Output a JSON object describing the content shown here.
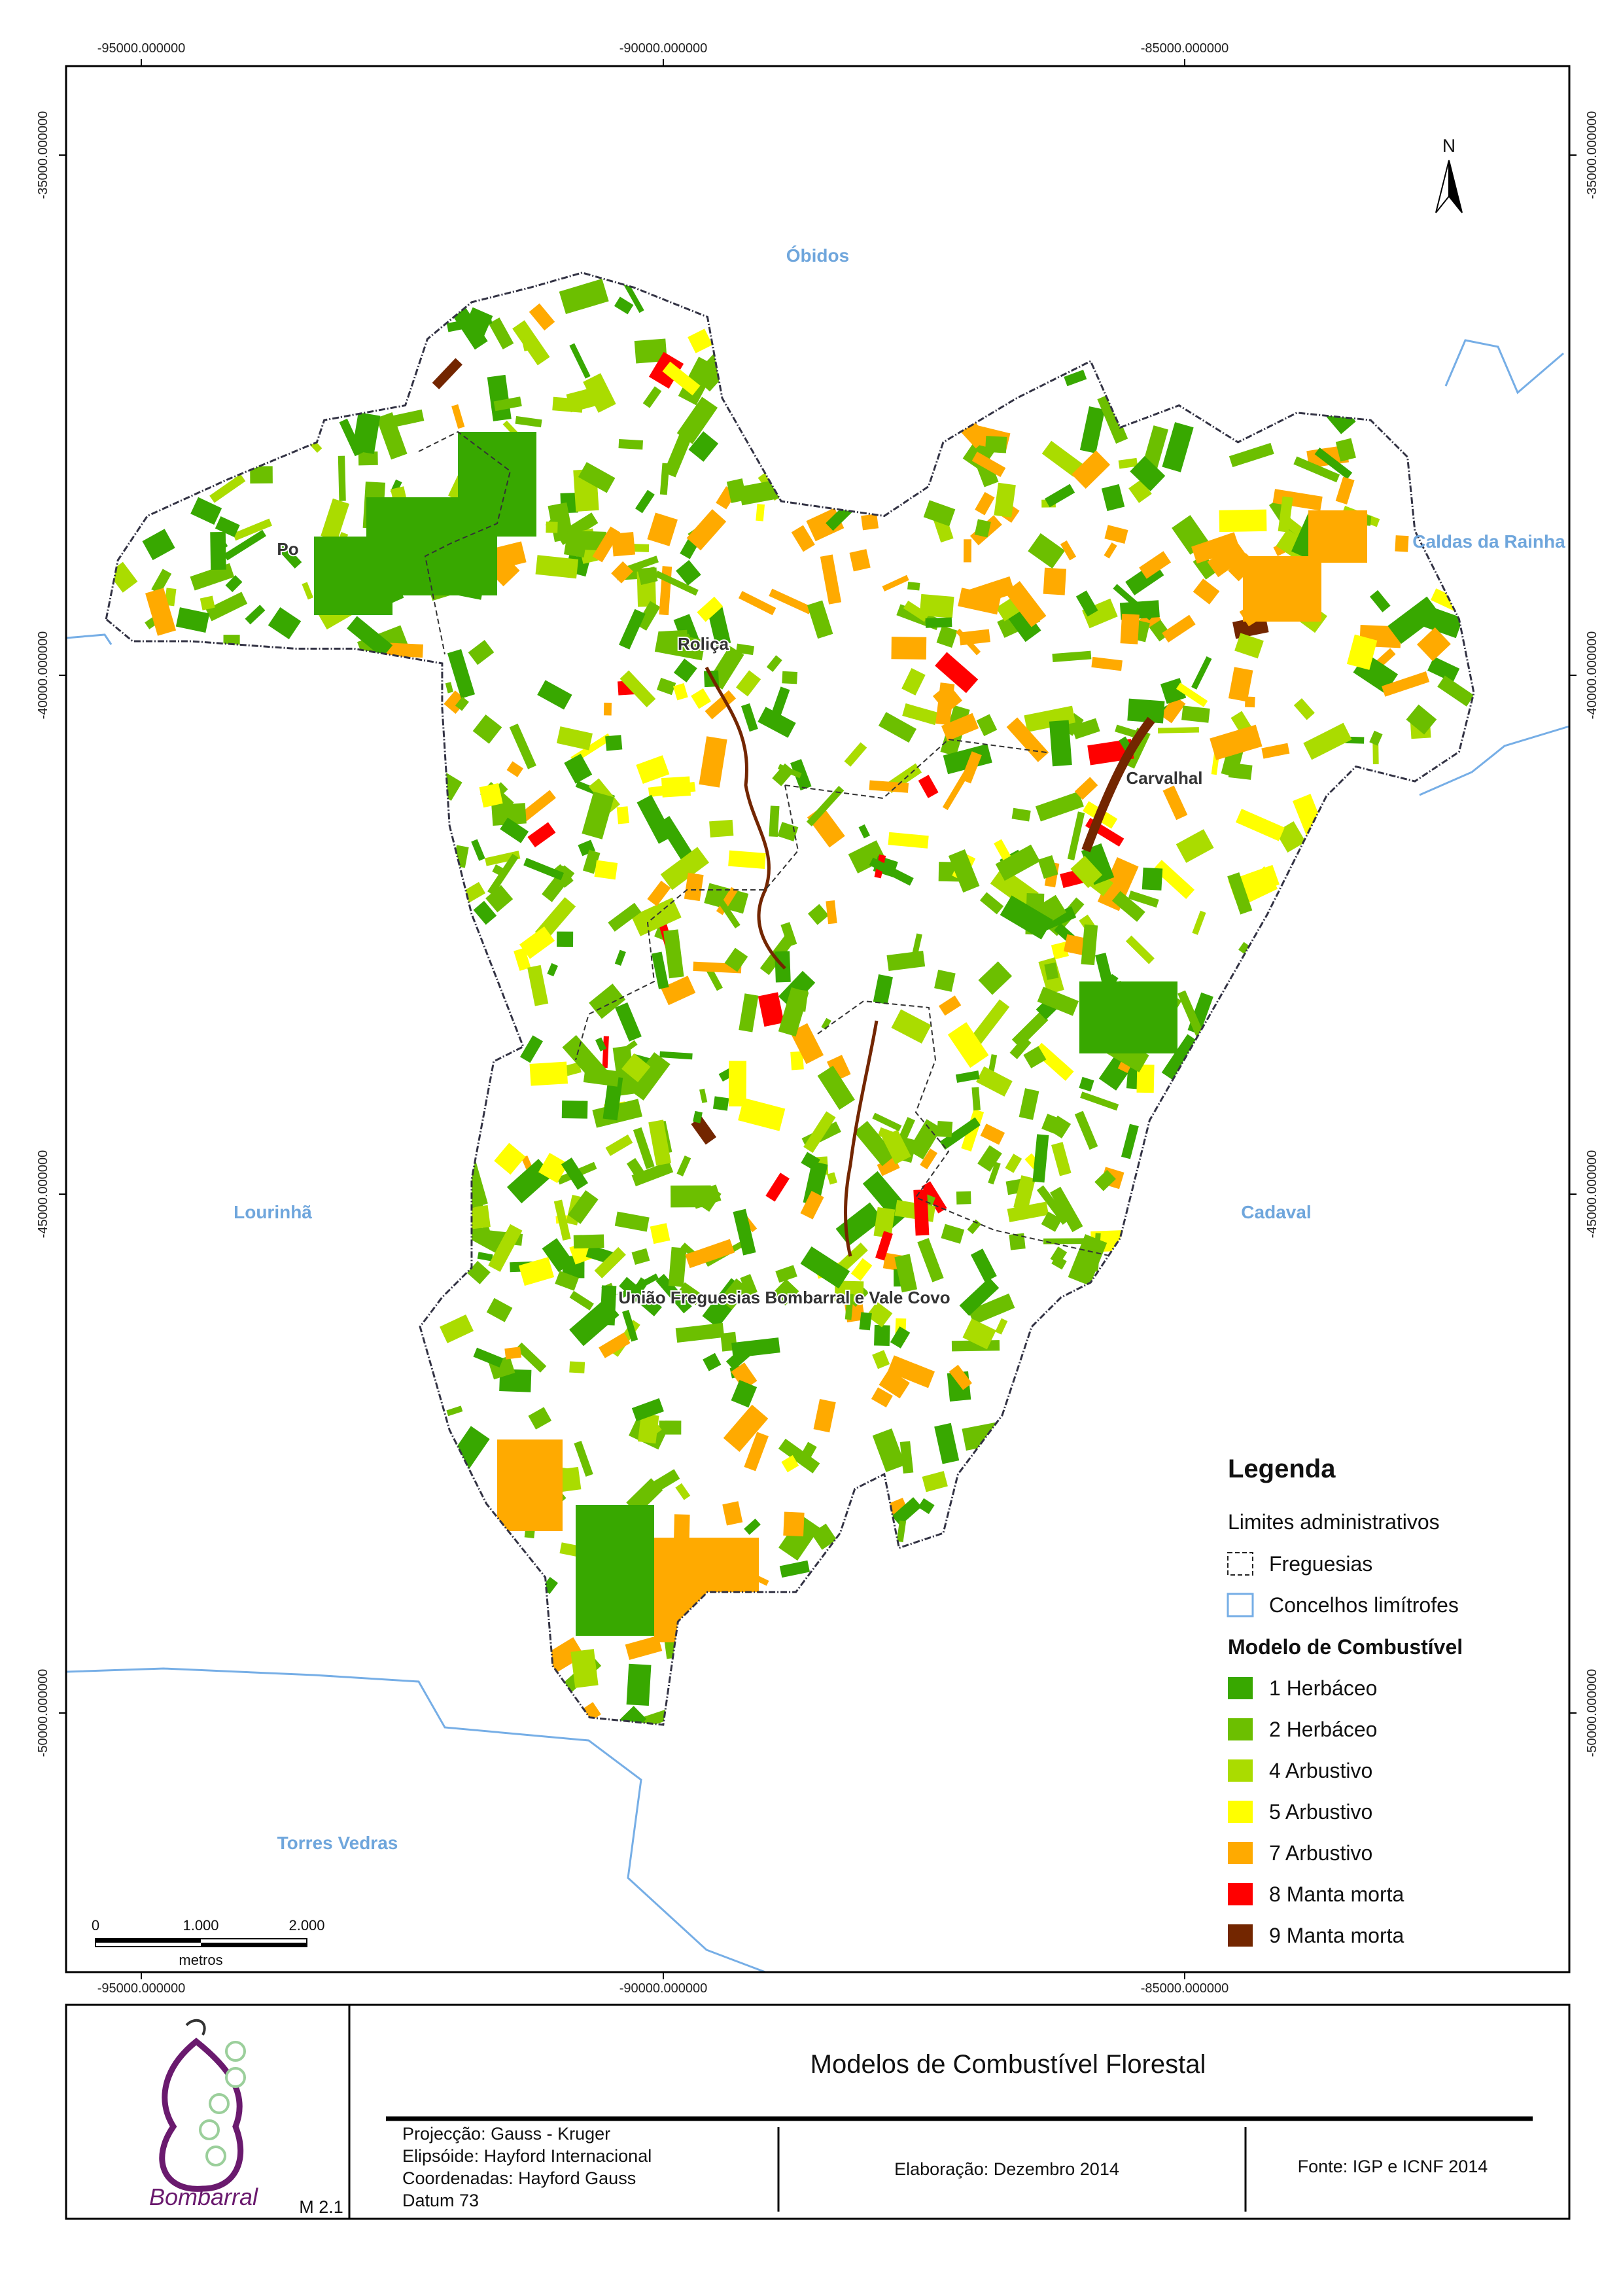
{
  "map": {
    "grid_labels": {
      "top": [
        "-95000.000000",
        "-90000.000000",
        "-85000.000000"
      ],
      "bottom": [
        "-95000.000000",
        "-90000.000000",
        "-85000.000000"
      ],
      "left": [
        "-35000.000000",
        "-40000.000000",
        "-45000.000000",
        "-50000.000000"
      ],
      "right": [
        "-35000.000000",
        "-40000.000000",
        "-45000.000000",
        "-50000.000000"
      ]
    },
    "places": {
      "neighbors": [
        "Óbidos",
        "Caldas da Rainha",
        "Lourinhã",
        "Cadaval",
        "Torres Vedras"
      ],
      "parishes": [
        "Po",
        "Roliça",
        "Carvalhal",
        "União Freguesias Bombarral e Vale Covo"
      ]
    },
    "north": "N",
    "scale_bar": {
      "labels": [
        "0",
        "1.000",
        "2.000"
      ],
      "unit": "metros"
    }
  },
  "legend": {
    "title": "Legenda",
    "admin_title": "Limites administrativos",
    "admin_items": [
      "Freguesias",
      "Concelhos limítrofes"
    ],
    "fuel_title": "Modelo de Combustível",
    "fuel_items": [
      {
        "label": "1 Herbáceo",
        "color": "#38a800"
      },
      {
        "label": "2 Herbáceo",
        "color": "#6cbf00"
      },
      {
        "label": "4 Arbustivo",
        "color": "#aadc00"
      },
      {
        "label": "5 Arbustivo",
        "color": "#ffff00"
      },
      {
        "label": "7 Arbustivo",
        "color": "#ffaa00"
      },
      {
        "label": "8 Manta morta",
        "color": "#ff0000"
      },
      {
        "label": "9 Manta morta",
        "color": "#732600"
      }
    ]
  },
  "title_block": {
    "title": "Modelos de Combustível Florestal",
    "projection": [
      "Projecção: Gauss - Kruger",
      "Elipsóide: Hayford Internacional",
      "Coordenadas: Hayford Gauss",
      "Datum 73"
    ],
    "elaboration": "Elaboração: Dezembro 2014",
    "source": "Fonte: IGP e ICNF 2014",
    "map_id": "M 2.1",
    "logo_text": "Bombarral"
  }
}
